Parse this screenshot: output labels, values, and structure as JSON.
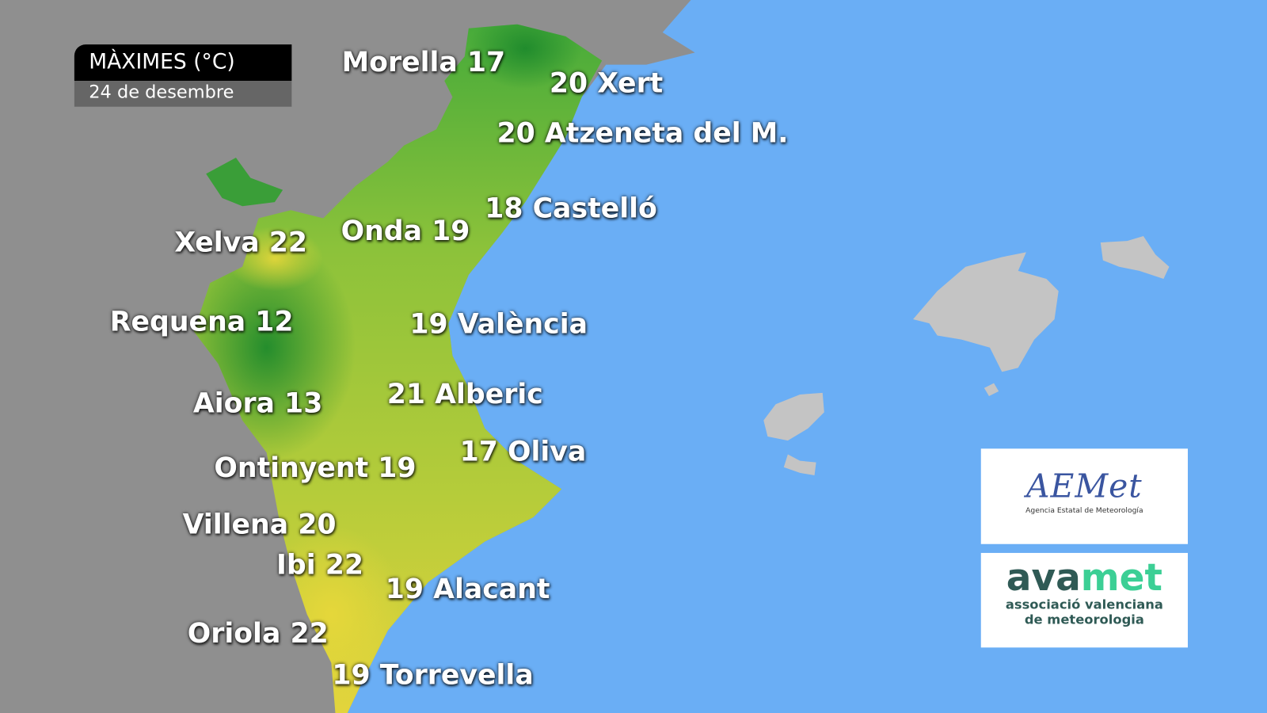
{
  "title": {
    "heading": "MÀXIMES (°C)",
    "date": "24 de desembre"
  },
  "colors": {
    "sea": "#6aaef5",
    "outside_land": "#8f8f8f",
    "balearics": "#c4c4c4",
    "cold": "#1f8a2a",
    "warm": "#e6d83a"
  },
  "stations": [
    {
      "label": "Morella 17",
      "name": "Morella",
      "value": 17
    },
    {
      "label": "20  Xert",
      "name": "Xert",
      "value": 20
    },
    {
      "label": "20 Atzeneta del M.",
      "name": "Atzeneta del M.",
      "value": 20
    },
    {
      "label": "18 Castelló",
      "name": "Castelló",
      "value": 18
    },
    {
      "label": "Onda 19",
      "name": "Onda",
      "value": 19
    },
    {
      "label": "Xelva 22",
      "name": "Xelva",
      "value": 22
    },
    {
      "label": "Requena 12",
      "name": "Requena",
      "value": 12
    },
    {
      "label": "19 València",
      "name": "València",
      "value": 19
    },
    {
      "label": "21 Alberic",
      "name": "Alberic",
      "value": 21
    },
    {
      "label": "Aiora 13",
      "name": "Aiora",
      "value": 13
    },
    {
      "label": "17 Oliva",
      "name": "Oliva",
      "value": 17
    },
    {
      "label": "Ontinyent 19",
      "name": "Ontinyent",
      "value": 19
    },
    {
      "label": "Villena 20",
      "name": "Villena",
      "value": 20
    },
    {
      "label": "Ibi 22",
      "name": "Ibi",
      "value": 22
    },
    {
      "label": "19 Alacant",
      "name": "Alacant",
      "value": 19
    },
    {
      "label": "Oriola 22",
      "name": "Oriola",
      "value": 22
    },
    {
      "label": "19 Torrevella",
      "name": "Torrevella",
      "value": 19
    }
  ],
  "logos": {
    "aemet": {
      "mark": "AEMet",
      "subtitle": "Agencia Estatal de Meteorología"
    },
    "avamet": {
      "mark_a": "ava",
      "mark_b": "met",
      "line1": "associació valenciana",
      "line2": "de meteorologia"
    }
  }
}
